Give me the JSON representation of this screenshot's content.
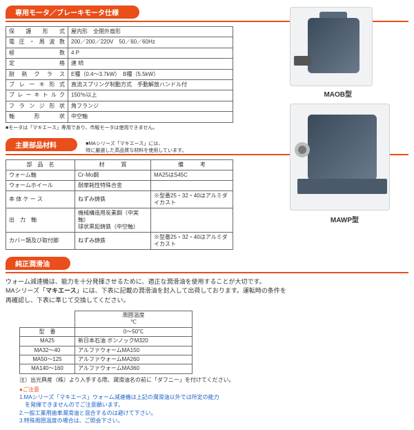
{
  "colors": {
    "accent": "#e94e1b",
    "hrule": "#e94e1b"
  },
  "sections": {
    "motor_spec": {
      "title": "専用モータ／ブレーキモータ仕様"
    },
    "materials": {
      "title": "主要部品材料",
      "side_note": "■MAシリーズ「マキエース」には、\n特に厳選した高品質な材料を使用しています。"
    },
    "lube": {
      "title": "純正潤滑油"
    }
  },
  "spec_rows": [
    {
      "label": "保 護 形 式",
      "value": "屋内形　全閉外扇形"
    },
    {
      "label": "電圧・周波数",
      "value": "200／200／220V　50／60／60Hz"
    },
    {
      "label": "極　　　　数",
      "value": "4 P"
    },
    {
      "label": "定　　　　格",
      "value": "連 続"
    },
    {
      "label": "耐 熱 ク ラ ス",
      "value": "E種（0.4～3.7kW）　B種（5.5kW）"
    },
    {
      "label": "ブレーキ形式",
      "value": "直流スプリング制動方式　手動解放ハンドル付"
    },
    {
      "label": "ブレーキトルク",
      "value": "150％以上"
    },
    {
      "label": "フランジ形状",
      "value": "角フランジ"
    },
    {
      "label": "軸　 形 　状",
      "value": "中空軸"
    }
  ],
  "spec_note": "■モータは「マキエース」専用であり、市販モータは使用できません。",
  "mat_header": {
    "c1": "部　品　名",
    "c2": "材　　　質",
    "c3": "備　　　考"
  },
  "mat_rows": [
    {
      "name": "ウォーム軸",
      "mat": "Cr-Mo鋼",
      "note": "MA25はS45C"
    },
    {
      "name": "ウォームホイール",
      "mat": "耐摩耗性特殊合金",
      "note": ""
    },
    {
      "name": "本 体 ケ ー ス",
      "mat": "ねずみ鋳鉄",
      "note": "※型番25・32・40はアルミダイカスト"
    },
    {
      "name": "出　力　軸",
      "mat": "機械構造用炭素鋼（中実軸）\n球状黒鉛鋳鉄（中空軸）",
      "note": ""
    },
    {
      "name": "カバー類及び取付脚",
      "mat": "ねずみ鋳鉄",
      "note": "※型番25・32・40はアルミダイカスト"
    }
  ],
  "lube_text": {
    "p1": "ウォーム減速機は、能力を十分発揮させるために、適正な潤滑油を使用することが大切です。",
    "p2a": "MAシリーズ「",
    "p2b": "マキエース",
    "p2c": "」には、下表に記載の潤滑油を封入して出荷しております。運転時の条件を",
    "p3": "再確認し、下表に準じて交換してください。"
  },
  "lube_header": {
    "c1": "型　番",
    "c2_top": "周囲温度\n℃",
    "c2_val": "0～50℃"
  },
  "lube_rows": [
    {
      "model": "MA25",
      "oil": "新日本石油 ボンノックM320"
    },
    {
      "model": "MA32～40",
      "oil": "アルファウォームMA150"
    },
    {
      "model": "MA50～125",
      "oil": "アルファウォームMA260"
    },
    {
      "model": "MA140～160",
      "oil": "アルファウォームMA360"
    }
  ],
  "lube_footnote": "注）出光興産（株）より入手する際、潤滑油名の前に「ダフニー」を付けてください。",
  "warnings": {
    "hdr": "●ご注意",
    "w1": "1.MAシリーズ「マキエース」ウォーム減速機は上記の潤滑油以外では所定の能力\n　を発揮できませんのでご注意願います。",
    "w2": "2.一般工業用歯車潤滑油と混合するのは避けて下さい。",
    "w3": "3.特殊周囲温度の場合は、ご照会下さい。"
  },
  "products": {
    "label1": "MAOB型",
    "label2": "MAWP型"
  }
}
